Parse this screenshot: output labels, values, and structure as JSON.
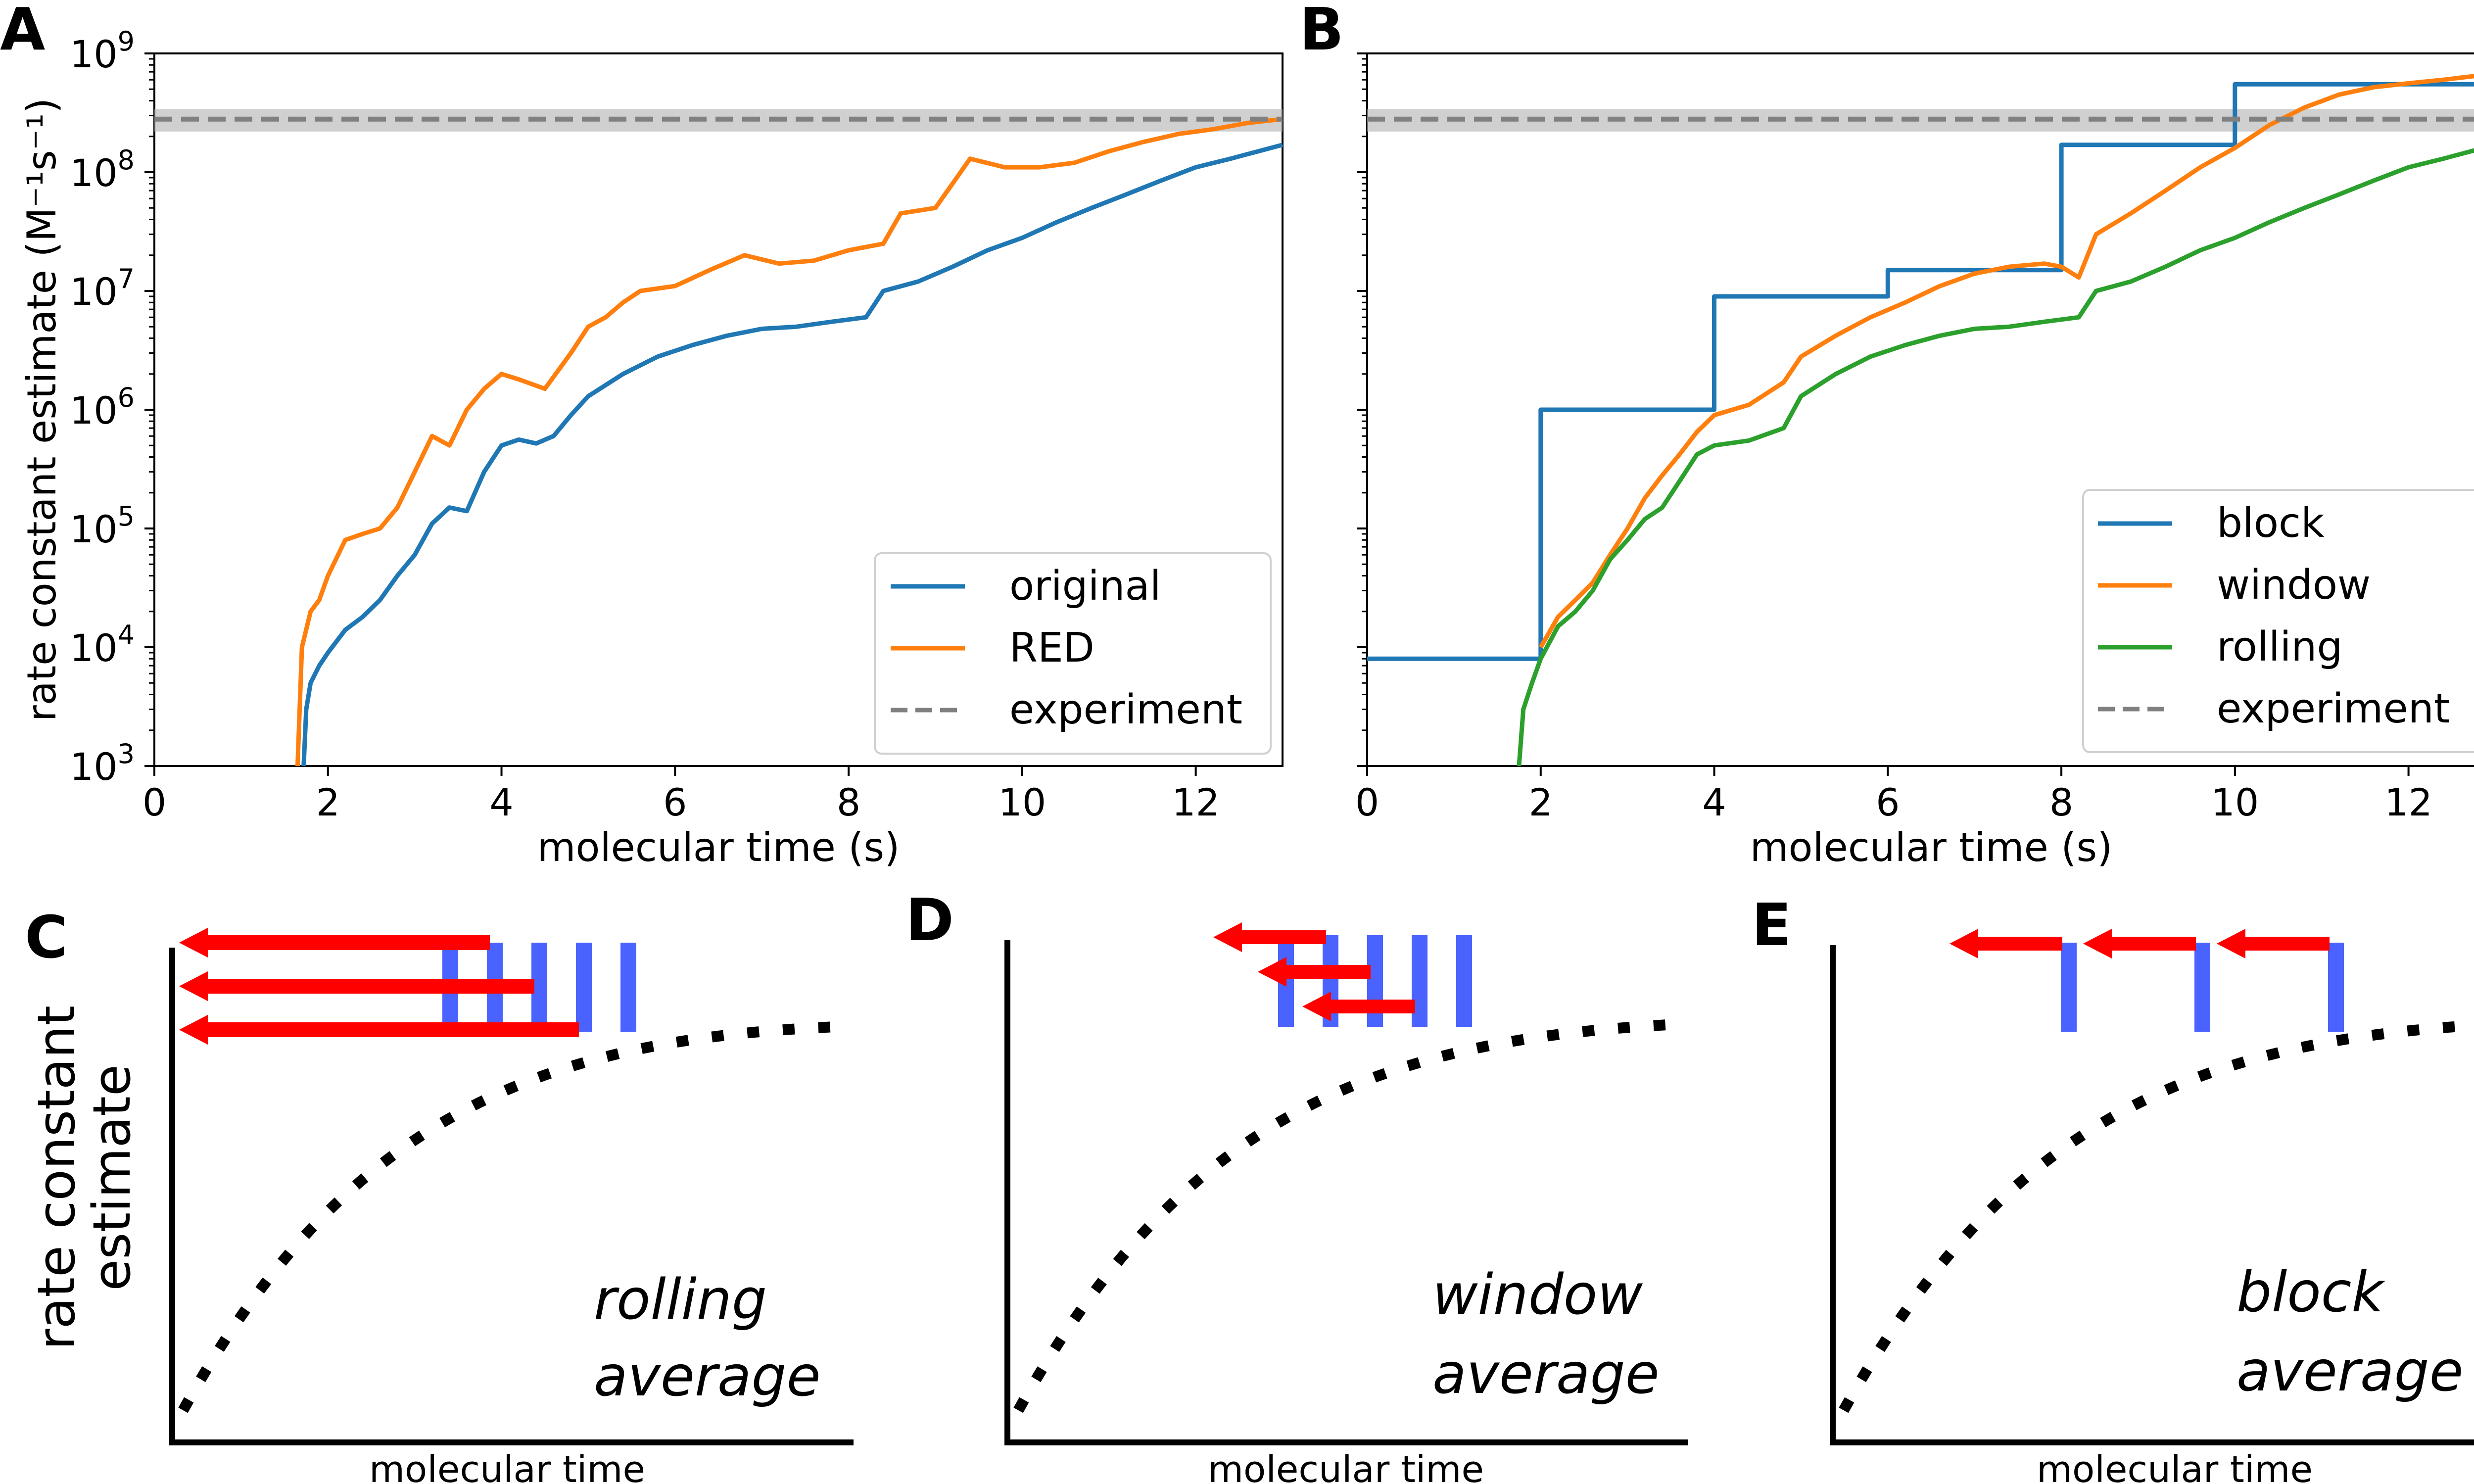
{
  "panels": {
    "A": {
      "letter": "A"
    },
    "B": {
      "letter": "B"
    },
    "C": {
      "letter": "C",
      "caption_line1": "rolling",
      "caption_line2": "average",
      "xlabel": "molecular time",
      "ylabel_line1": "rate constant",
      "ylabel_line2": "estimate"
    },
    "D": {
      "letter": "D",
      "caption_line1": "window",
      "caption_line2": "average",
      "xlabel": "molecular time"
    },
    "E": {
      "letter": "E",
      "caption_line1": "block",
      "caption_line2": "average",
      "xlabel": "molecular time"
    }
  },
  "chart_data": [
    {
      "type": "line",
      "panel": "A",
      "xlabel": "molecular time (s)",
      "ylabel": "rate constant estimate (M⁻¹s⁻¹)",
      "xlim": [
        0,
        13
      ],
      "ylim": [
        1000,
        1000000000
      ],
      "yscale": "log",
      "xticks": [
        0,
        2,
        4,
        6,
        8,
        10,
        12
      ],
      "yticks": [
        {
          "value": 1000,
          "base": "10",
          "exp": "3"
        },
        {
          "value": 10000,
          "base": "10",
          "exp": "4"
        },
        {
          "value": 100000,
          "base": "10",
          "exp": "5"
        },
        {
          "value": 1000000,
          "base": "10",
          "exp": "6"
        },
        {
          "value": 10000000,
          "base": "10",
          "exp": "7"
        },
        {
          "value": 100000000,
          "base": "10",
          "exp": "8"
        },
        {
          "value": 1000000000,
          "base": "10",
          "exp": "9"
        }
      ],
      "legend_position": "lower right",
      "series": [
        {
          "name": "original",
          "color": "#1f77b4",
          "x": [
            1.72,
            1.75,
            1.8,
            1.9,
            2.0,
            2.2,
            2.4,
            2.6,
            2.8,
            3.0,
            3.2,
            3.4,
            3.6,
            3.8,
            4.0,
            4.2,
            4.4,
            4.6,
            4.8,
            5.0,
            5.4,
            5.8,
            6.2,
            6.6,
            7.0,
            7.4,
            7.8,
            8.2,
            8.4,
            8.8,
            9.2,
            9.6,
            10.0,
            10.4,
            10.8,
            11.2,
            11.6,
            12.0,
            12.4,
            13.0
          ],
          "y": [
            1000,
            3000,
            5000,
            7000,
            9000,
            14000,
            18000,
            25000,
            40000,
            60000,
            110000,
            150000,
            140000,
            300000,
            500000,
            560000,
            520000,
            600000,
            900000,
            1300000,
            2000000,
            2800000,
            3500000,
            4200000,
            4800000,
            5000000,
            5500000,
            6000000,
            10000000,
            12000000,
            16000000,
            22000000,
            28000000,
            38000000,
            50000000,
            65000000,
            85000000,
            110000000,
            130000000,
            170000000
          ]
        },
        {
          "name": "RED",
          "color": "#ff7f0e",
          "x": [
            1.65,
            1.7,
            1.8,
            1.9,
            2.0,
            2.2,
            2.4,
            2.6,
            2.8,
            3.0,
            3.2,
            3.4,
            3.6,
            3.8,
            4.0,
            4.2,
            4.5,
            4.8,
            5.0,
            5.2,
            5.4,
            5.6,
            6.0,
            6.4,
            6.8,
            7.2,
            7.6,
            8.0,
            8.4,
            8.6,
            9.0,
            9.4,
            9.8,
            10.2,
            10.6,
            11.0,
            11.4,
            11.8,
            12.2,
            12.6,
            13.0
          ],
          "y": [
            1000,
            10000,
            20000,
            25000,
            40000,
            80000,
            90000,
            100000,
            150000,
            300000,
            600000,
            500000,
            1000000,
            1500000,
            2000000,
            1800000,
            1500000,
            3000000,
            5000000,
            6000000,
            8000000,
            10000000,
            11000000,
            15000000,
            20000000,
            17000000,
            18000000,
            22000000,
            25000000,
            45000000,
            50000000,
            130000000,
            110000000,
            110000000,
            120000000,
            150000000,
            180000000,
            210000000,
            230000000,
            260000000,
            280000000
          ]
        },
        {
          "name": "experiment",
          "color": "#808080",
          "dashed": true,
          "x": [
            0,
            13
          ],
          "y": [
            280000000,
            280000000
          ],
          "band": [
            220000000,
            340000000
          ]
        }
      ]
    },
    {
      "type": "line",
      "panel": "B",
      "xlabel": "molecular time (s)",
      "xlim": [
        0,
        13
      ],
      "ylim": [
        1000,
        1000000000
      ],
      "yscale": "log",
      "xticks": [
        0,
        2,
        4,
        6,
        8,
        10,
        12
      ],
      "legend_position": "lower right",
      "series": [
        {
          "name": "block",
          "color": "#1f77b4",
          "step": true,
          "x": [
            0,
            2,
            2,
            4,
            4,
            6,
            6,
            8,
            8,
            10,
            10,
            13
          ],
          "y": [
            8000,
            8000,
            1000000,
            1000000,
            9000000,
            9000000,
            15000000,
            15000000,
            170000000,
            170000000,
            550000000,
            550000000
          ]
        },
        {
          "name": "window",
          "color": "#ff7f0e",
          "x": [
            2.0,
            2.2,
            2.4,
            2.6,
            2.8,
            3.0,
            3.2,
            3.4,
            3.6,
            3.8,
            4.0,
            4.4,
            4.8,
            5.0,
            5.4,
            5.8,
            6.2,
            6.6,
            7.0,
            7.4,
            7.8,
            8.0,
            8.2,
            8.4,
            8.8,
            9.2,
            9.6,
            10.0,
            10.4,
            10.8,
            11.2,
            11.6,
            12.0,
            12.4,
            12.8,
            13.0
          ],
          "y": [
            10000,
            18000,
            25000,
            35000,
            60000,
            100000,
            180000,
            280000,
            420000,
            650000,
            900000,
            1100000,
            1700000,
            2800000,
            4200000,
            6000000,
            8000000,
            11000000,
            14000000,
            16000000,
            17000000,
            16000000,
            13000000,
            30000000,
            45000000,
            70000000,
            110000000,
            160000000,
            250000000,
            350000000,
            450000000,
            520000000,
            560000000,
            600000000,
            650000000,
            610000000
          ]
        },
        {
          "name": "rolling",
          "color": "#2ca02c",
          "x": [
            1.75,
            1.8,
            1.9,
            2.0,
            2.2,
            2.4,
            2.6,
            2.8,
            3.0,
            3.2,
            3.4,
            3.6,
            3.8,
            4.0,
            4.4,
            4.8,
            5.0,
            5.4,
            5.8,
            6.2,
            6.6,
            7.0,
            7.4,
            7.8,
            8.2,
            8.4,
            8.8,
            9.2,
            9.6,
            10.0,
            10.4,
            10.8,
            11.2,
            11.6,
            12.0,
            12.4,
            13.0
          ],
          "y": [
            1000,
            3000,
            5000,
            8000,
            15000,
            20000,
            30000,
            55000,
            80000,
            120000,
            150000,
            250000,
            420000,
            500000,
            550000,
            700000,
            1300000,
            2000000,
            2800000,
            3500000,
            4200000,
            4800000,
            5000000,
            5500000,
            6000000,
            10000000,
            12000000,
            16000000,
            22000000,
            28000000,
            38000000,
            50000000,
            65000000,
            85000000,
            110000000,
            130000000,
            170000000
          ]
        },
        {
          "name": "experiment",
          "color": "#808080",
          "dashed": true,
          "x": [
            0,
            13
          ],
          "y": [
            280000000,
            280000000
          ],
          "band": [
            220000000,
            340000000
          ]
        }
      ]
    }
  ]
}
